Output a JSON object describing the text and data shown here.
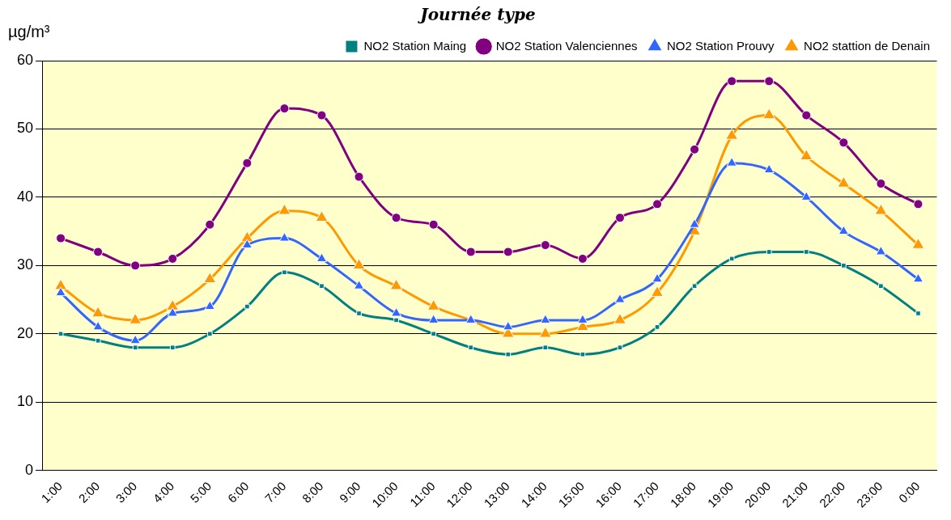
{
  "chart_data": {
    "type": "line",
    "title": "Journée type",
    "ylabel": "µg/m³",
    "categories": [
      "1:00",
      "2:00",
      "3:00",
      "4:00",
      "5:00",
      "6:00",
      "7:00",
      "8:00",
      "9:00",
      "10:00",
      "11:00",
      "12:00",
      "13:00",
      "14:00",
      "15:00",
      "16:00",
      "17:00",
      "18:00",
      "19:00",
      "20:00",
      "21:00",
      "22:00",
      "23:00",
      "0:00"
    ],
    "series": [
      {
        "name": "NO2 Station Maing",
        "color": "#008080",
        "marker": "square",
        "values": [
          20,
          19,
          18,
          18,
          20,
          24,
          29,
          27,
          23,
          22,
          20,
          18,
          17,
          18,
          17,
          18,
          21,
          27,
          31,
          32,
          32,
          30,
          27,
          23
        ]
      },
      {
        "name": "NO2 Station Valenciennes",
        "color": "#800080",
        "marker": "circle",
        "values": [
          34,
          32,
          30,
          31,
          36,
          45,
          53,
          52,
          43,
          37,
          36,
          32,
          32,
          33,
          31,
          37,
          39,
          47,
          57,
          57,
          52,
          48,
          42,
          39
        ]
      },
      {
        "name": "NO2 Station Prouvy",
        "color": "#3366ff",
        "marker": "triangle",
        "values": [
          26,
          21,
          19,
          23,
          24,
          33,
          34,
          31,
          27,
          23,
          22,
          22,
          21,
          22,
          22,
          25,
          28,
          36,
          45,
          44,
          40,
          35,
          32,
          28
        ]
      },
      {
        "name": "NO2 stattion de Denain",
        "color": "#ff9900",
        "marker": "triangle",
        "values": [
          27,
          23,
          22,
          24,
          28,
          34,
          38,
          37,
          30,
          27,
          24,
          22,
          20,
          20,
          21,
          22,
          26,
          35,
          49,
          52,
          46,
          42,
          38,
          33
        ]
      }
    ],
    "ylim": [
      0,
      60
    ],
    "yticks": [
      0,
      10,
      20,
      30,
      40,
      50,
      60
    ],
    "grid": "y",
    "legend": "top right",
    "line_style": "solid"
  }
}
